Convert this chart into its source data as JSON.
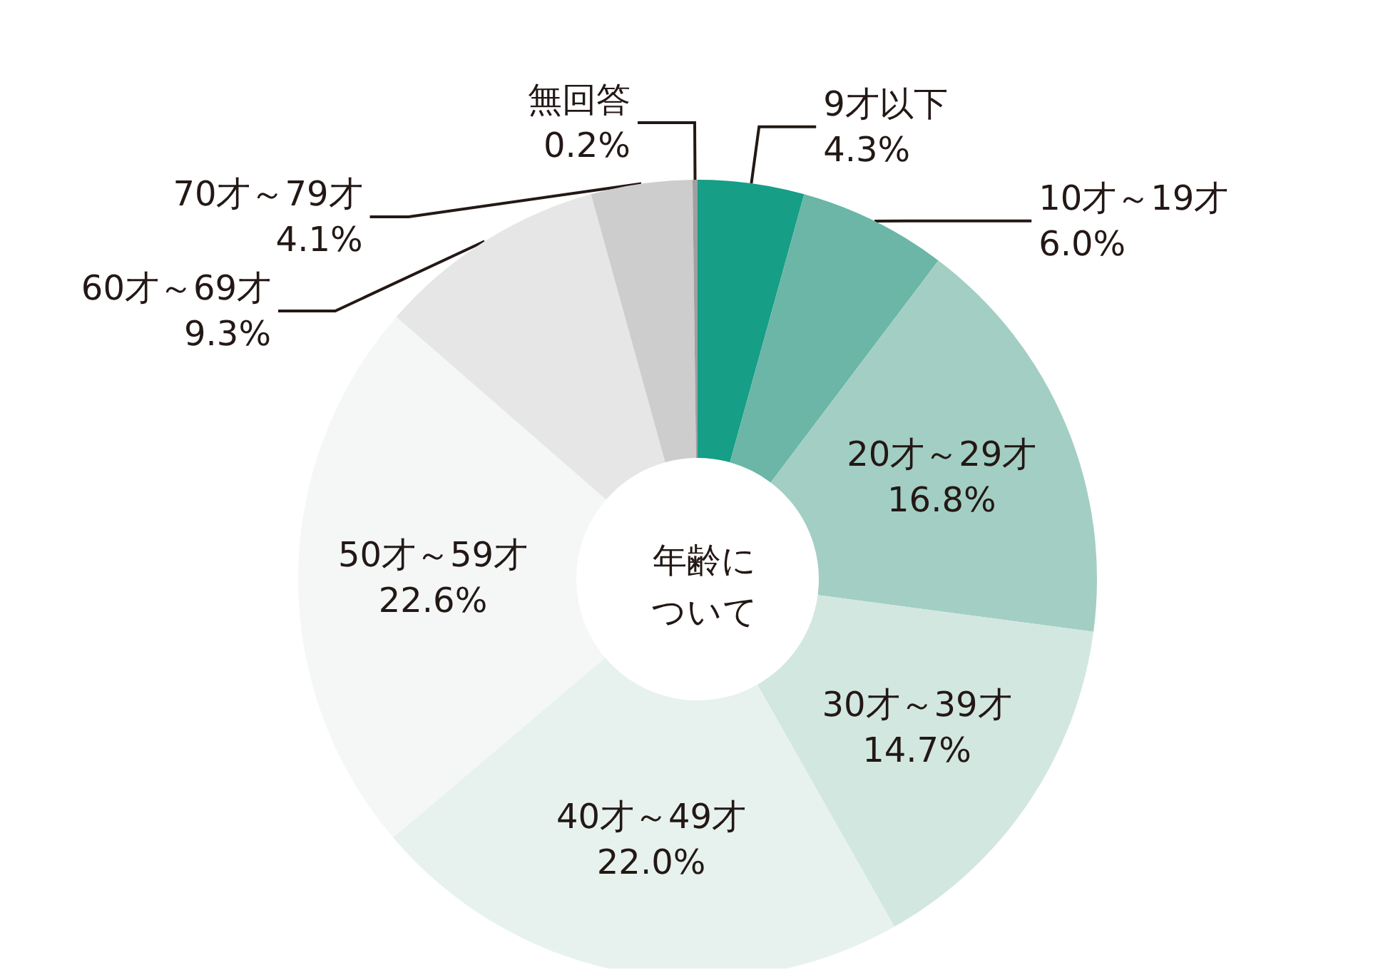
{
  "chart_data": {
    "type": "donut",
    "title": "年齢について",
    "categories": [
      "9才以下",
      "10才～19才",
      "20才～29才",
      "30才～39才",
      "40才～49才",
      "50才～59才",
      "60才～69才",
      "70才～79才",
      "無回答"
    ],
    "values": [
      4.3,
      6.0,
      16.8,
      14.7,
      22.0,
      22.6,
      9.3,
      4.1,
      0.2
    ],
    "value_labels": [
      "4.3%",
      "6.0%",
      "16.8%",
      "14.7%",
      "22.0%",
      "22.6%",
      "9.3%",
      "4.1%",
      "0.2%"
    ],
    "colors": [
      "#169e86",
      "#6bb6a6",
      "#a3cec3",
      "#d2e7e0",
      "#e7f2ee",
      "#f4f7f6",
      "#e6e6e6",
      "#cdcdcd",
      "#a0a0a0"
    ],
    "legend": false
  }
}
